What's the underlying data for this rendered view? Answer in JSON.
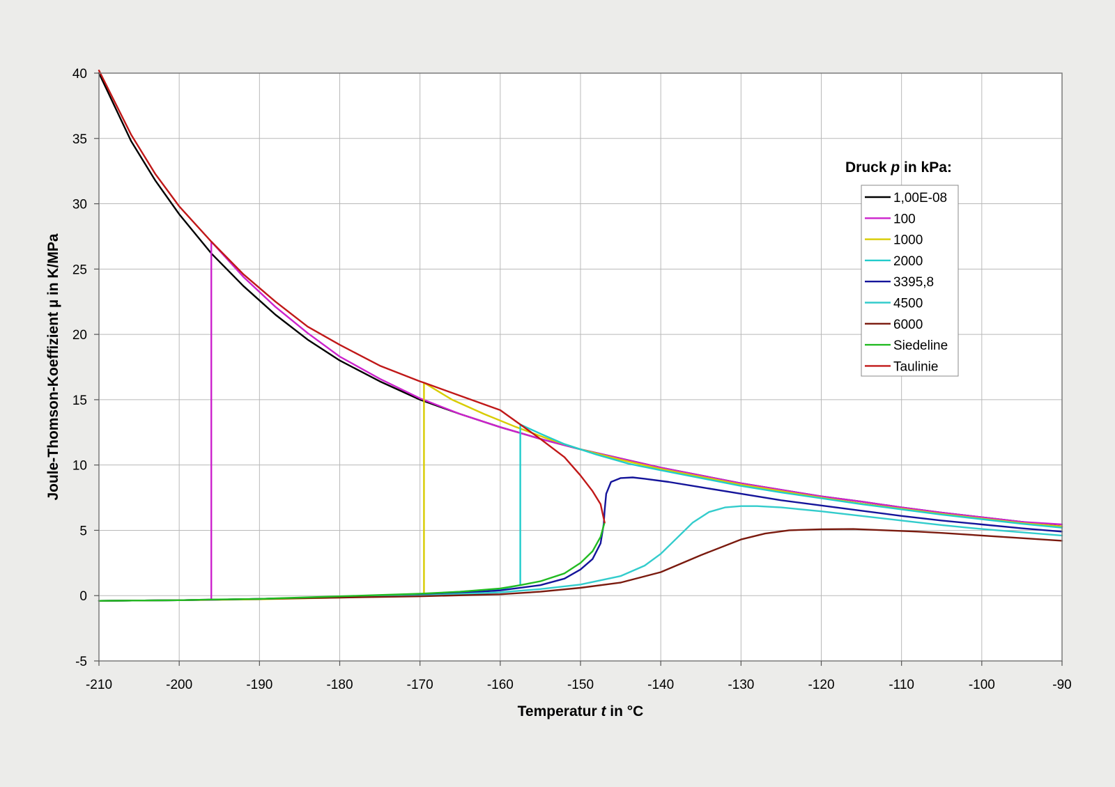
{
  "chart_data": {
    "type": "line",
    "xlabel": "Temperatur t in °C",
    "xlabel_parts": {
      "before": "Temperatur ",
      "symbol": "t",
      "after": " in °C"
    },
    "ylabel": "Joule-Thomson-Koeffizient µ in K/MPa",
    "xlim": [
      -210,
      -90
    ],
    "ylim": [
      -5,
      40
    ],
    "x_ticks": [
      "-210",
      "-200",
      "-190",
      "-180",
      "-170",
      "-160",
      "-150",
      "-140",
      "-130",
      "-120",
      "-110",
      "-100",
      "-90"
    ],
    "y_ticks": [
      "-5",
      "0",
      "5",
      "10",
      "15",
      "20",
      "25",
      "30",
      "35",
      "40"
    ],
    "grid": true,
    "legend": {
      "title": "Druck p in kPa:",
      "title_parts": {
        "before": "Druck ",
        "symbol": "p",
        "after": " in kPa:"
      },
      "position": "right"
    },
    "series": [
      {
        "name": "1,00E-08",
        "color": "#000000",
        "points": [
          [
            -210,
            40
          ],
          [
            -206,
            34.8
          ],
          [
            -203,
            31.8
          ],
          [
            -200,
            29.2
          ],
          [
            -196,
            26.2
          ],
          [
            -192,
            23.7
          ],
          [
            -188,
            21.5
          ],
          [
            -184,
            19.6
          ],
          [
            -180,
            18
          ],
          [
            -175,
            16.4
          ],
          [
            -170,
            15
          ],
          [
            -165,
            13.9
          ],
          [
            -160,
            12.9
          ],
          [
            -155,
            12
          ],
          [
            -150,
            11.2
          ],
          [
            -145,
            10.5
          ],
          [
            -140,
            9.8
          ],
          [
            -135,
            9.2
          ],
          [
            -130,
            8.6
          ],
          [
            -125,
            8.1
          ],
          [
            -120,
            7.6
          ],
          [
            -115,
            7.2
          ],
          [
            -110,
            6.75
          ],
          [
            -105,
            6.35
          ],
          [
            -100,
            6
          ],
          [
            -95,
            5.65
          ],
          [
            -90,
            5.3
          ]
        ]
      },
      {
        "name": "100",
        "color": "#cc22cc",
        "points": [
          [
            -210,
            -0.4
          ],
          [
            -200,
            -0.35
          ],
          [
            -196,
            -0.3
          ],
          [
            -196,
            27.1
          ],
          [
            -192,
            24.4
          ],
          [
            -188,
            22.1
          ],
          [
            -184,
            20.1
          ],
          [
            -180,
            18.3
          ],
          [
            -175,
            16.6
          ],
          [
            -170,
            15.1
          ],
          [
            -165,
            13.9
          ],
          [
            -160,
            12.9
          ],
          [
            -155,
            12
          ],
          [
            -150,
            11.2
          ],
          [
            -145,
            10.5
          ],
          [
            -140,
            9.8
          ],
          [
            -135,
            9.2
          ],
          [
            -130,
            8.6
          ],
          [
            -125,
            8.1
          ],
          [
            -120,
            7.6
          ],
          [
            -115,
            7.2
          ],
          [
            -110,
            6.75
          ],
          [
            -105,
            6.35
          ],
          [
            -100,
            6
          ],
          [
            -95,
            5.65
          ],
          [
            -90,
            5.45
          ]
        ]
      },
      {
        "name": "1000",
        "color": "#d8cc00",
        "points": [
          [
            -210,
            -0.4
          ],
          [
            -200,
            -0.35
          ],
          [
            -190,
            -0.28
          ],
          [
            -180,
            -0.15
          ],
          [
            -172,
            -0.05
          ],
          [
            -169.5,
            0
          ],
          [
            -169.5,
            16.3
          ],
          [
            -166,
            15
          ],
          [
            -162,
            13.9
          ],
          [
            -158,
            12.9
          ],
          [
            -154,
            12
          ],
          [
            -150,
            11.2
          ],
          [
            -145,
            10.4
          ],
          [
            -140,
            9.7
          ],
          [
            -135,
            9.1
          ],
          [
            -130,
            8.5
          ],
          [
            -125,
            8
          ],
          [
            -120,
            7.5
          ],
          [
            -115,
            7.05
          ],
          [
            -110,
            6.65
          ],
          [
            -105,
            6.25
          ],
          [
            -100,
            5.9
          ],
          [
            -95,
            5.55
          ],
          [
            -90,
            5.3
          ]
        ]
      },
      {
        "name": "2000",
        "color": "#22cccc",
        "points": [
          [
            -210,
            -0.4
          ],
          [
            -200,
            -0.35
          ],
          [
            -190,
            -0.25
          ],
          [
            -180,
            -0.1
          ],
          [
            -170,
            0.1
          ],
          [
            -165,
            0.3
          ],
          [
            -160,
            0.5
          ],
          [
            -157.5,
            0.8
          ],
          [
            -157.5,
            13.1
          ],
          [
            -155,
            12.4
          ],
          [
            -152,
            11.6
          ],
          [
            -148,
            10.8
          ],
          [
            -144,
            10.1
          ],
          [
            -140,
            9.6
          ],
          [
            -135,
            9
          ],
          [
            -130,
            8.4
          ],
          [
            -125,
            7.9
          ],
          [
            -120,
            7.45
          ],
          [
            -115,
            7
          ],
          [
            -110,
            6.6
          ],
          [
            -105,
            6.2
          ],
          [
            -100,
            5.85
          ],
          [
            -95,
            5.5
          ],
          [
            -90,
            5.2
          ]
        ]
      },
      {
        "name": "3395,8",
        "color": "#14149a",
        "points": [
          [
            -210,
            -0.4
          ],
          [
            -200,
            -0.35
          ],
          [
            -190,
            -0.25
          ],
          [
            -180,
            -0.1
          ],
          [
            -170,
            0.05
          ],
          [
            -165,
            0.2
          ],
          [
            -160,
            0.4
          ],
          [
            -155,
            0.8
          ],
          [
            -152,
            1.3
          ],
          [
            -150,
            2
          ],
          [
            -148.5,
            2.8
          ],
          [
            -147.5,
            4
          ],
          [
            -147.1,
            5.5
          ],
          [
            -147,
            6.5
          ],
          [
            -146.8,
            7.8
          ],
          [
            -146.2,
            8.7
          ],
          [
            -145,
            9
          ],
          [
            -143.5,
            9.05
          ],
          [
            -142,
            8.95
          ],
          [
            -139,
            8.7
          ],
          [
            -135,
            8.3
          ],
          [
            -130,
            7.8
          ],
          [
            -125,
            7.3
          ],
          [
            -120,
            6.9
          ],
          [
            -115,
            6.5
          ],
          [
            -110,
            6.1
          ],
          [
            -105,
            5.75
          ],
          [
            -100,
            5.45
          ],
          [
            -95,
            5.15
          ],
          [
            -90,
            4.9
          ]
        ]
      },
      {
        "name": "4500",
        "color": "#33cccc",
        "points": [
          [
            -210,
            -0.4
          ],
          [
            -200,
            -0.35
          ],
          [
            -190,
            -0.25
          ],
          [
            -180,
            -0.1
          ],
          [
            -170,
            0
          ],
          [
            -160,
            0.25
          ],
          [
            -155,
            0.5
          ],
          [
            -150,
            0.85
          ],
          [
            -145,
            1.5
          ],
          [
            -142,
            2.3
          ],
          [
            -140,
            3.2
          ],
          [
            -138,
            4.4
          ],
          [
            -136,
            5.6
          ],
          [
            -134,
            6.4
          ],
          [
            -132,
            6.75
          ],
          [
            -130,
            6.85
          ],
          [
            -128,
            6.85
          ],
          [
            -125,
            6.75
          ],
          [
            -120,
            6.45
          ],
          [
            -115,
            6.1
          ],
          [
            -110,
            5.75
          ],
          [
            -105,
            5.4
          ],
          [
            -100,
            5.1
          ],
          [
            -95,
            4.85
          ],
          [
            -90,
            4.6
          ]
        ]
      },
      {
        "name": "6000",
        "color": "#7a1a0e",
        "points": [
          [
            -210,
            -0.4
          ],
          [
            -200,
            -0.35
          ],
          [
            -190,
            -0.25
          ],
          [
            -180,
            -0.15
          ],
          [
            -170,
            -0.05
          ],
          [
            -160,
            0.1
          ],
          [
            -155,
            0.3
          ],
          [
            -150,
            0.6
          ],
          [
            -145,
            1
          ],
          [
            -140,
            1.8
          ],
          [
            -135,
            3.1
          ],
          [
            -130,
            4.3
          ],
          [
            -127,
            4.75
          ],
          [
            -124,
            5
          ],
          [
            -120,
            5.08
          ],
          [
            -116,
            5.1
          ],
          [
            -112,
            5
          ],
          [
            -108,
            4.9
          ],
          [
            -105,
            4.8
          ],
          [
            -100,
            4.6
          ],
          [
            -95,
            4.4
          ],
          [
            -90,
            4.2
          ]
        ]
      },
      {
        "name": "Siedeline",
        "color": "#22bb22",
        "points": [
          [
            -210,
            -0.4
          ],
          [
            -200,
            -0.35
          ],
          [
            -196,
            -0.3
          ],
          [
            -190,
            -0.25
          ],
          [
            -185,
            -0.15
          ],
          [
            -180,
            -0.05
          ],
          [
            -175,
            0.05
          ],
          [
            -170,
            0.15
          ],
          [
            -165,
            0.3
          ],
          [
            -160,
            0.55
          ],
          [
            -157.5,
            0.8
          ],
          [
            -155,
            1.1
          ],
          [
            -152,
            1.7
          ],
          [
            -150,
            2.5
          ],
          [
            -148.5,
            3.4
          ],
          [
            -147.5,
            4.5
          ],
          [
            -147,
            5.6
          ]
        ]
      },
      {
        "name": "Taulinie",
        "color": "#c01818",
        "points": [
          [
            -210,
            40.2
          ],
          [
            -206,
            35.3
          ],
          [
            -203,
            32.3
          ],
          [
            -200,
            29.8
          ],
          [
            -196,
            27.1
          ],
          [
            -192,
            24.6
          ],
          [
            -188,
            22.5
          ],
          [
            -184,
            20.6
          ],
          [
            -180,
            19.2
          ],
          [
            -175,
            17.6
          ],
          [
            -170,
            16.4
          ],
          [
            -169.5,
            16.3
          ],
          [
            -165,
            15.3
          ],
          [
            -160,
            14.2
          ],
          [
            -157.5,
            13.1
          ],
          [
            -155,
            12
          ],
          [
            -152,
            10.6
          ],
          [
            -150,
            9.2
          ],
          [
            -148.5,
            8
          ],
          [
            -147.5,
            7
          ],
          [
            -147,
            5.6
          ]
        ]
      }
    ]
  }
}
